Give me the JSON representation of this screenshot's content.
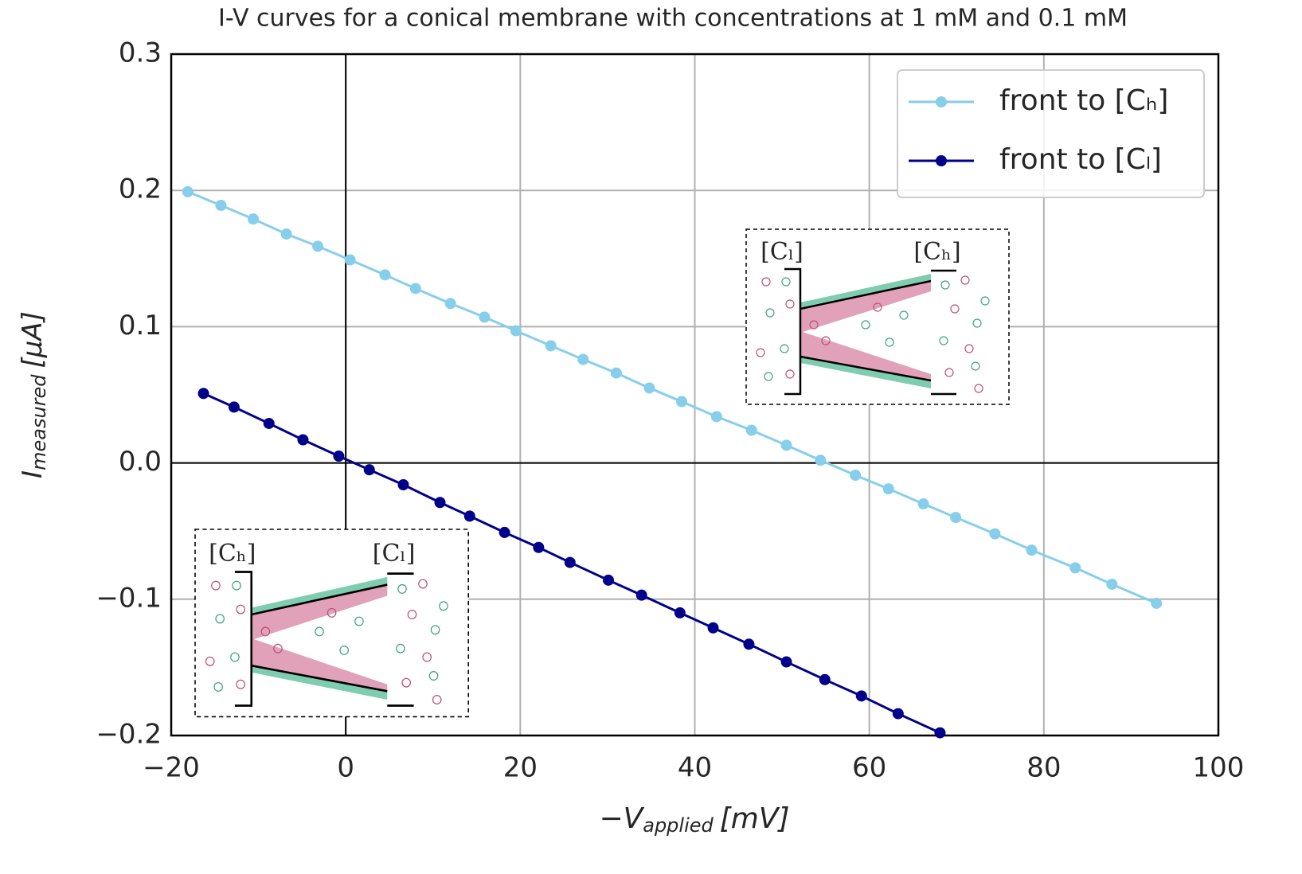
{
  "chart_data": {
    "type": "line",
    "title": "I-V curves for a conical membrane with concentrations at 1 mM and 0.1 mM",
    "xlabel": {
      "symbol": "−V",
      "subscript": "applied",
      "unit": "[mV]"
    },
    "ylabel": {
      "symbol": "I",
      "subscript": "measured",
      "unit": "[μA]"
    },
    "xlim": [
      -20,
      100
    ],
    "ylim": [
      -0.2,
      0.3
    ],
    "xticks": [
      {
        "value": -20,
        "label": "−20"
      },
      0,
      20,
      40,
      60,
      80,
      100
    ],
    "yticks": [
      {
        "value": -0.2,
        "label": "−0.2"
      },
      {
        "value": -0.1,
        "label": "−0.1"
      },
      {
        "value": 0,
        "label": "0.0"
      },
      0.1,
      0.2,
      0.3
    ],
    "grid": true,
    "legend": "upper right",
    "series": [
      {
        "name": "front to [Cₕ]",
        "color": "#87ceeb",
        "x": [
          -18.1,
          -14.3,
          -10.6,
          -6.8,
          -3.2,
          0.5,
          4.5,
          8.0,
          12.0,
          15.9,
          19.5,
          23.5,
          27.2,
          31.0,
          34.8,
          38.5,
          42.5,
          46.5,
          50.5,
          54.4,
          58.4,
          62.2,
          66.2,
          69.9,
          74.4,
          78.6,
          83.6,
          87.8,
          92.9
        ],
        "values": [
          0.199,
          0.189,
          0.179,
          0.168,
          0.159,
          0.149,
          0.138,
          0.128,
          0.117,
          0.107,
          0.097,
          0.086,
          0.076,
          0.066,
          0.055,
          0.045,
          0.034,
          0.024,
          0.013,
          0.002,
          -0.009,
          -0.019,
          -0.03,
          -0.04,
          -0.052,
          -0.064,
          -0.077,
          -0.089,
          -0.103
        ]
      },
      {
        "name": "front to [Cₗ]",
        "color": "#00008b",
        "x": [
          -16.3,
          -12.8,
          -8.8,
          -4.9,
          -0.8,
          2.7,
          6.6,
          10.8,
          14.2,
          18.2,
          22.1,
          25.7,
          30.1,
          33.9,
          38.3,
          42.1,
          46.2,
          50.5,
          54.9,
          59.1,
          63.3,
          68.1
        ],
        "values": [
          0.051,
          0.041,
          0.029,
          0.017,
          0.005,
          -0.005,
          -0.016,
          -0.029,
          -0.039,
          -0.051,
          -0.062,
          -0.073,
          -0.086,
          -0.097,
          -0.11,
          -0.121,
          -0.133,
          -0.146,
          -0.159,
          -0.171,
          -0.184,
          -0.198
        ]
      }
    ],
    "insets": [
      {
        "labels": [
          "[Cₗ]",
          "[Cₕ]"
        ]
      },
      {
        "labels": [
          "[Cₕ]",
          "[Cₗ]"
        ]
      }
    ]
  }
}
